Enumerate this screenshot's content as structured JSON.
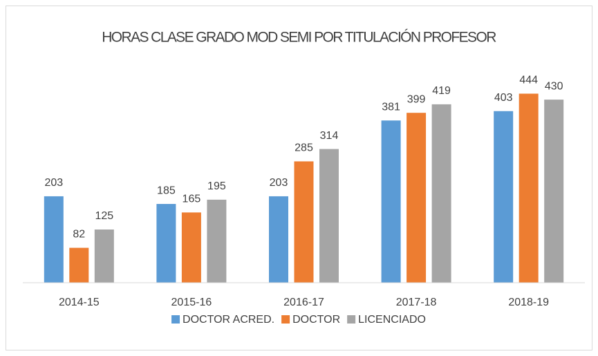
{
  "chart_data": {
    "type": "bar",
    "title": "HORAS CLASE GRADO MOD SEMI POR TITULACIÓN PROFESOR",
    "categories": [
      "2014-15",
      "2015-16",
      "2016-17",
      "2017-18",
      "2018-19"
    ],
    "series": [
      {
        "name": "DOCTOR ACRED.",
        "color": "#5b9bd5",
        "values": [
          203,
          185,
          203,
          381,
          403
        ]
      },
      {
        "name": "DOCTOR",
        "color": "#ed7d31",
        "values": [
          82,
          165,
          285,
          399,
          444
        ]
      },
      {
        "name": "LICENCIADO",
        "color": "#a5a5a5",
        "values": [
          125,
          195,
          314,
          419,
          430
        ]
      }
    ],
    "ylim": [
      0,
      500
    ],
    "legend": "bottom"
  }
}
